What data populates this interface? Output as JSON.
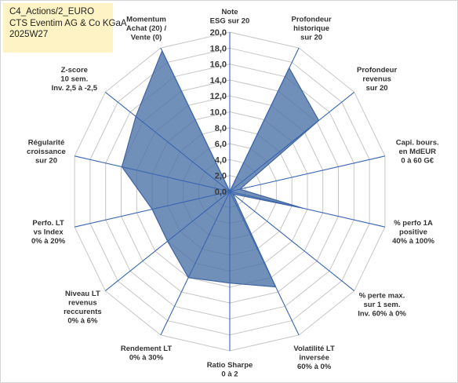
{
  "info": {
    "line1": "C4_Actions/2_EURO",
    "line2": "CTS Eventim AG & Co KGaA",
    "line3": "2025W27"
  },
  "chart_data": {
    "type": "radar",
    "r_min": 0,
    "r_max": 20,
    "tick_step": 2,
    "tick_labels": [
      "0,0",
      "2,0",
      "4,0",
      "6,0",
      "8,0",
      "10,0",
      "12,0",
      "14,0",
      "16,0",
      "18,0",
      "20,0"
    ],
    "grid": true,
    "categories": [
      "Note ESG sur 20",
      "Profondeur historique sur 20",
      "Profondeur revenus sur 20",
      "Capi. bours. en MdEUR 0 à 60 G€",
      "% perfo 1A positive 40% à 100%",
      "% perte max. sur 1 sem. Inv. 60% à 0%",
      "Volatilité LT inversée 60% à 0%",
      "Ratio Sharpe 0 à 2",
      "Rendement LT 0% à 30%",
      "Niveau LT revenus reccurents 0% à 6%",
      "Perfo. LT vs index 0% à 20%",
      "Régularité croissance sur 20",
      "Z-score 10 sem. Inv. 2,5 à -2,5",
      "Momentum Achat (20) / Vente (0)"
    ],
    "axis_label_lines": [
      [
        "Note",
        "ESG sur 20"
      ],
      [
        "Profondeur",
        "historique",
        "sur 20"
      ],
      [
        "Profondeur",
        "revenus",
        "sur 20"
      ],
      [
        "Capi. bours.",
        "en MdEUR",
        "0 à 60 G€"
      ],
      [
        "% perfo 1A",
        "positive",
        "40% à 100%"
      ],
      [
        "% perte max.",
        "sur 1 sem.",
        "Inv. 60% à 0%"
      ],
      [
        "Volatilité LT",
        "inversée",
        "60% à 0%"
      ],
      [
        "Ratio Sharpe",
        "0 à 2"
      ],
      [
        "Rendement LT",
        "0% à 30%"
      ],
      [
        "Niveau LT",
        "revenus",
        "reccurents",
        "0% à 6%"
      ],
      [
        "Perfo. LT",
        "vs Index",
        "0% à 20%"
      ],
      [
        "Régularité",
        "croissance",
        "sur 20"
      ],
      [
        "Z-score",
        "10 sem.",
        "Inv. 2,5 à -2,5"
      ],
      [
        "Momentum",
        "Achat (20) /",
        "Vente (0)"
      ]
    ],
    "values": [
      0,
      17.2,
      14.3,
      1.3,
      9.4,
      0.5,
      13.3,
      11.5,
      12.0,
      10.0,
      10.0,
      13.9,
      15.1,
      19.6
    ],
    "colors": {
      "fill": "#4c73a8",
      "stroke": "#3f64a0",
      "axis": "#3a66b0",
      "grid": "#c6c6c6",
      "info_bg": "#fdf3c4"
    }
  }
}
